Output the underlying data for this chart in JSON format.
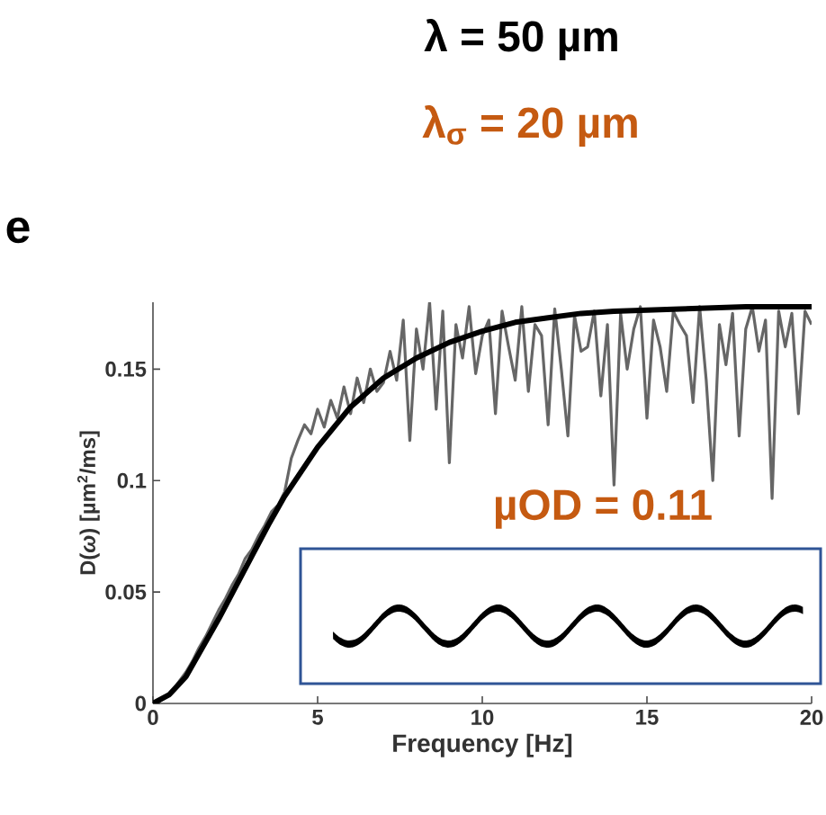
{
  "chart_data": {
    "type": "line",
    "xlabel": "Frequency [Hz]",
    "ylabel": "D(*ω*) [µm$^{2}$/ms]",
    "annotations": [
      "λ = 50 µm",
      "λ$_{σ}$ = 20 µm",
      "e",
      "µOD = 0.11"
    ],
    "xlim": [
      0,
      20
    ],
    "ylim": [
      0,
      0.18
    ],
    "xticks": [
      0,
      5,
      10,
      15,
      20
    ],
    "yticks": [
      0,
      0.05,
      0.1,
      0.15
    ],
    "grid": false,
    "marker": "none",
    "series": [
      {
        "color": "#666666",
        "x": [
          0,
          0.2,
          0.4,
          0.6,
          0.8,
          1,
          1.2,
          1.4,
          1.6,
          1.8,
          2,
          2.2,
          2.4,
          2.6,
          2.8,
          3,
          3.2,
          3.4,
          3.6,
          3.8,
          4,
          4.2,
          4.4,
          4.6,
          4.8,
          5,
          5.2,
          5.4,
          5.6,
          5.8,
          6,
          6.2,
          6.4,
          6.6,
          6.8,
          7,
          7.2,
          7.4,
          7.6,
          7.8,
          8,
          8.2,
          8.4,
          8.6,
          8.8,
          9,
          9.2,
          9.4,
          9.6,
          9.8,
          10,
          10.2,
          10.4,
          10.6,
          10.8,
          11,
          11.2,
          11.4,
          11.6,
          11.8,
          12,
          12.2,
          12.4,
          12.6,
          12.8,
          13,
          13.2,
          13.4,
          13.6,
          13.8,
          14,
          14.2,
          14.4,
          14.6,
          14.8,
          15,
          15.2,
          15.4,
          15.6,
          15.8,
          16,
          16.2,
          16.4,
          16.6,
          16.8,
          17,
          17.2,
          17.4,
          17.6,
          17.8,
          18,
          18.2,
          18.4,
          18.6,
          18.8,
          19,
          19.2,
          19.4,
          19.6,
          19.8,
          20
        ],
        "values": [
          0,
          0.001,
          0.003,
          0.006,
          0.01,
          0.014,
          0.019,
          0.025,
          0.03,
          0.036,
          0.042,
          0.047,
          0.053,
          0.058,
          0.065,
          0.069,
          0.075,
          0.08,
          0.086,
          0.089,
          0.095,
          0.11,
          0.118,
          0.125,
          0.121,
          0.132,
          0.124,
          0.136,
          0.128,
          0.142,
          0.13,
          0.146,
          0.135,
          0.15,
          0.14,
          0.144,
          0.158,
          0.145,
          0.172,
          0.118,
          0.168,
          0.15,
          0.18,
          0.132,
          0.176,
          0.108,
          0.17,
          0.155,
          0.178,
          0.148,
          0.165,
          0.172,
          0.13,
          0.176,
          0.16,
          0.145,
          0.178,
          0.14,
          0.17,
          0.165,
          0.125,
          0.177,
          0.15,
          0.12,
          0.174,
          0.158,
          0.16,
          0.176,
          0.138,
          0.17,
          0.098,
          0.175,
          0.15,
          0.168,
          0.178,
          0.128,
          0.172,
          0.16,
          0.14,
          0.176,
          0.17,
          0.165,
          0.135,
          0.178,
          0.145,
          0.1,
          0.17,
          0.152,
          0.175,
          0.12,
          0.168,
          0.178,
          0.158,
          0.172,
          0.092,
          0.176,
          0.16,
          0.175,
          0.13,
          0.176,
          0.17
        ]
      },
      {
        "color": "#000000",
        "x": [
          0,
          0.5,
          1,
          1.5,
          2,
          2.5,
          3,
          3.5,
          4,
          5,
          6,
          7,
          8,
          9,
          10,
          11,
          12,
          13,
          14,
          16,
          18,
          20
        ],
        "values": [
          0,
          0.004,
          0.012,
          0.025,
          0.038,
          0.052,
          0.066,
          0.08,
          0.093,
          0.115,
          0.133,
          0.146,
          0.155,
          0.162,
          0.167,
          0.171,
          0.173,
          0.175,
          0.176,
          0.177,
          0.178,
          0.178
        ]
      }
    ]
  }
}
